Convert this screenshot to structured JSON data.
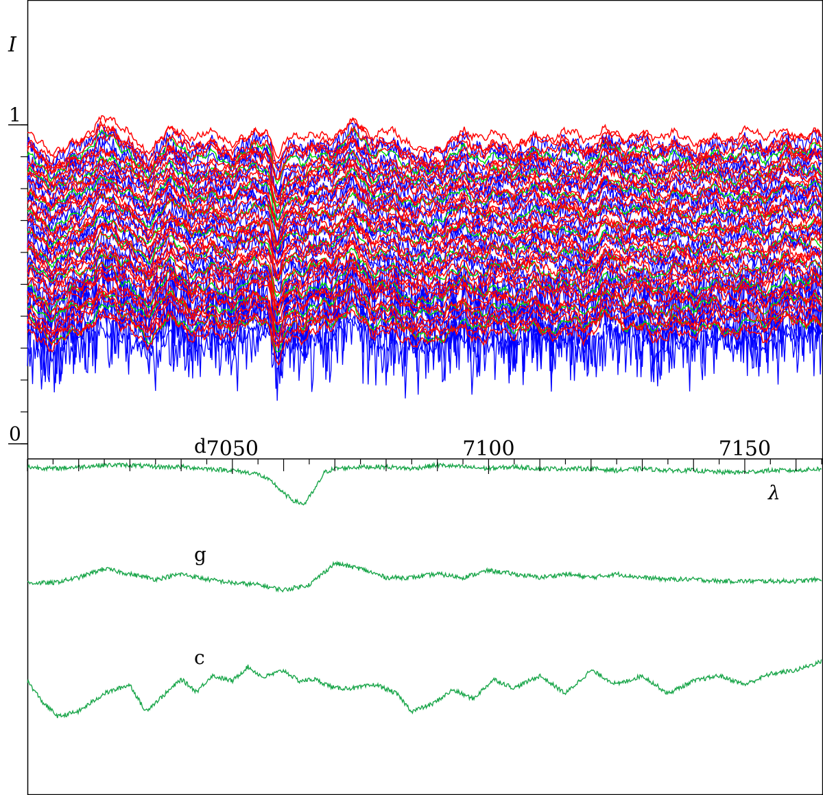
{
  "chart_data": [
    {
      "type": "line",
      "panel": "top",
      "title": "",
      "ylabel": "I",
      "xlabel": "λ",
      "xlim": [
        7010,
        7165
      ],
      "ylim": [
        0,
        1
      ],
      "y_tick_labels": [
        {
          "value": 1,
          "label": "1"
        },
        {
          "value": 0,
          "label": "0"
        }
      ],
      "y_minor_step": 0.1,
      "x_tick_labels": [
        {
          "value": 7050,
          "label": "7050"
        },
        {
          "value": 7100,
          "label": "7100"
        },
        {
          "value": 7150,
          "label": "7150"
        }
      ],
      "x_minor_step": 5,
      "series_groups": [
        {
          "color": "#0000ff",
          "count": 28,
          "y_top": 0.93,
          "y_bottom": 0.32,
          "noise": 0.025,
          "spikes": true
        },
        {
          "color": "#00dd00",
          "count": 10,
          "y_top": 0.9,
          "y_bottom": 0.37,
          "noise": 0.006,
          "spikes": false
        },
        {
          "color": "#ff0000",
          "count": 34,
          "y_top": 0.96,
          "y_bottom": 0.35,
          "noise": 0.009,
          "spikes": false
        }
      ]
    },
    {
      "type": "line",
      "panel": "bottom",
      "title": "",
      "xlim": [
        7010,
        7165
      ],
      "series": [
        {
          "name": "d",
          "color": "#1aa64a",
          "x": [
            7010,
            7015,
            7020,
            7025,
            7030,
            7035,
            7040,
            7045,
            7050,
            7055,
            7058,
            7060,
            7062,
            7064,
            7066,
            7068,
            7070,
            7075,
            7080,
            7085,
            7090,
            7095,
            7100,
            7105,
            7110,
            7115,
            7120,
            7125,
            7130,
            7135,
            7140,
            7145,
            7150,
            7155,
            7160,
            7165
          ],
          "y": [
            0.99,
            0.98,
            0.99,
            1.0,
            1.0,
            0.99,
            0.99,
            0.98,
            0.97,
            0.95,
            0.9,
            0.84,
            0.8,
            0.78,
            0.86,
            0.96,
            0.98,
            0.99,
            0.99,
            0.98,
            1.0,
            0.99,
            0.98,
            0.99,
            0.98,
            0.98,
            0.98,
            0.97,
            0.98,
            0.97,
            0.97,
            0.96,
            0.96,
            0.97,
            0.97,
            0.98
          ]
        },
        {
          "name": "g",
          "color": "#1aa64a",
          "x": [
            7010,
            7015,
            7020,
            7025,
            7030,
            7035,
            7040,
            7045,
            7050,
            7055,
            7060,
            7065,
            7070,
            7075,
            7080,
            7085,
            7090,
            7095,
            7100,
            7105,
            7110,
            7115,
            7120,
            7125,
            7130,
            7135,
            7140,
            7145,
            7150,
            7155,
            7160,
            7165
          ],
          "y": [
            0.97,
            0.97,
            1.0,
            1.05,
            1.02,
            0.99,
            1.02,
            0.99,
            0.97,
            0.96,
            0.93,
            0.96,
            1.08,
            1.05,
            1.0,
            1.0,
            1.02,
            1.0,
            1.04,
            1.02,
            1.0,
            1.02,
            1.0,
            1.02,
            1.0,
            0.99,
            0.99,
            0.98,
            0.98,
            0.98,
            0.98,
            0.99
          ]
        },
        {
          "name": "c",
          "color": "#1aa64a",
          "x": [
            7010,
            7013,
            7016,
            7020,
            7025,
            7030,
            7033,
            7037,
            7040,
            7043,
            7046,
            7050,
            7053,
            7056,
            7060,
            7063,
            7066,
            7070,
            7074,
            7078,
            7082,
            7085,
            7089,
            7093,
            7097,
            7101,
            7105,
            7110,
            7115,
            7120,
            7125,
            7130,
            7135,
            7140,
            7145,
            7150,
            7155,
            7160,
            7165
          ],
          "y": [
            0.92,
            0.8,
            0.72,
            0.75,
            0.85,
            0.9,
            0.75,
            0.85,
            0.93,
            0.86,
            0.95,
            0.92,
            1.0,
            0.94,
            0.98,
            0.92,
            0.93,
            0.88,
            0.88,
            0.9,
            0.85,
            0.75,
            0.79,
            0.87,
            0.82,
            0.93,
            0.88,
            0.95,
            0.85,
            0.98,
            0.9,
            0.95,
            0.85,
            0.92,
            0.95,
            0.9,
            0.96,
            0.98,
            1.03
          ]
        }
      ]
    }
  ]
}
